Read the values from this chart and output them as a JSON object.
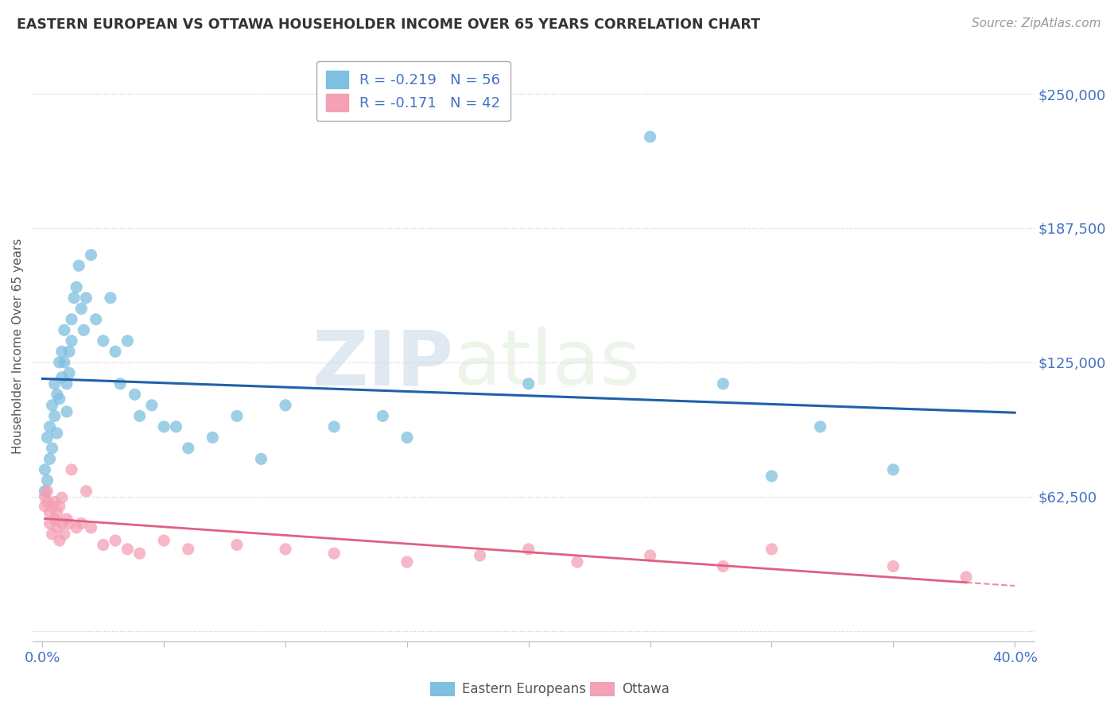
{
  "title": "EASTERN EUROPEAN VS OTTAWA HOUSEHOLDER INCOME OVER 65 YEARS CORRELATION CHART",
  "source": "Source: ZipAtlas.com",
  "ylabel": "Householder Income Over 65 years",
  "xlim": [
    -0.004,
    0.408
  ],
  "ylim": [
    -5000,
    270000
  ],
  "yticks": [
    0,
    62500,
    125000,
    187500,
    250000
  ],
  "ytick_labels": [
    "",
    "$62,500",
    "$125,000",
    "$187,500",
    "$250,000"
  ],
  "xticks": [
    0.0,
    0.05,
    0.1,
    0.15,
    0.2,
    0.25,
    0.3,
    0.35,
    0.4
  ],
  "xtick_labels": [
    "0.0%",
    "",
    "",
    "",
    "",
    "",
    "",
    "",
    "40.0%"
  ],
  "legend_r1": "R = -0.219   N = 56",
  "legend_r2": "R = -0.171   N = 42",
  "color_blue": "#7fbfdf",
  "color_pink": "#f4a0b5",
  "color_blue_line": "#2060a8",
  "color_pink_line": "#e06080",
  "watermark_zip": "ZIP",
  "watermark_atlas": "atlas",
  "eastern_x": [
    0.001,
    0.001,
    0.002,
    0.002,
    0.003,
    0.003,
    0.004,
    0.004,
    0.005,
    0.005,
    0.006,
    0.006,
    0.007,
    0.007,
    0.008,
    0.008,
    0.009,
    0.009,
    0.01,
    0.01,
    0.011,
    0.011,
    0.012,
    0.012,
    0.013,
    0.014,
    0.015,
    0.016,
    0.017,
    0.018,
    0.02,
    0.022,
    0.025,
    0.028,
    0.03,
    0.032,
    0.035,
    0.038,
    0.04,
    0.045,
    0.05,
    0.055,
    0.06,
    0.07,
    0.08,
    0.09,
    0.1,
    0.12,
    0.14,
    0.15,
    0.2,
    0.25,
    0.28,
    0.3,
    0.32,
    0.35
  ],
  "eastern_y": [
    75000,
    65000,
    90000,
    70000,
    95000,
    80000,
    105000,
    85000,
    115000,
    100000,
    110000,
    92000,
    125000,
    108000,
    130000,
    118000,
    140000,
    125000,
    115000,
    102000,
    130000,
    120000,
    135000,
    145000,
    155000,
    160000,
    170000,
    150000,
    140000,
    155000,
    175000,
    145000,
    135000,
    155000,
    130000,
    115000,
    135000,
    110000,
    100000,
    105000,
    95000,
    95000,
    85000,
    90000,
    100000,
    80000,
    105000,
    95000,
    100000,
    90000,
    115000,
    230000,
    115000,
    72000,
    95000,
    75000
  ],
  "ottawa_x": [
    0.001,
    0.001,
    0.002,
    0.002,
    0.003,
    0.003,
    0.004,
    0.004,
    0.005,
    0.005,
    0.006,
    0.006,
    0.007,
    0.007,
    0.008,
    0.008,
    0.009,
    0.01,
    0.011,
    0.012,
    0.014,
    0.016,
    0.018,
    0.02,
    0.025,
    0.03,
    0.035,
    0.04,
    0.05,
    0.06,
    0.08,
    0.1,
    0.12,
    0.15,
    0.18,
    0.2,
    0.22,
    0.25,
    0.28,
    0.3,
    0.35,
    0.38
  ],
  "ottawa_y": [
    62500,
    58000,
    65000,
    60000,
    55000,
    50000,
    58000,
    45000,
    60000,
    52000,
    55000,
    48000,
    58000,
    42000,
    62000,
    50000,
    45000,
    52000,
    50000,
    75000,
    48000,
    50000,
    65000,
    48000,
    40000,
    42000,
    38000,
    36000,
    42000,
    38000,
    40000,
    38000,
    36000,
    32000,
    35000,
    38000,
    32000,
    35000,
    30000,
    38000,
    30000,
    25000
  ]
}
